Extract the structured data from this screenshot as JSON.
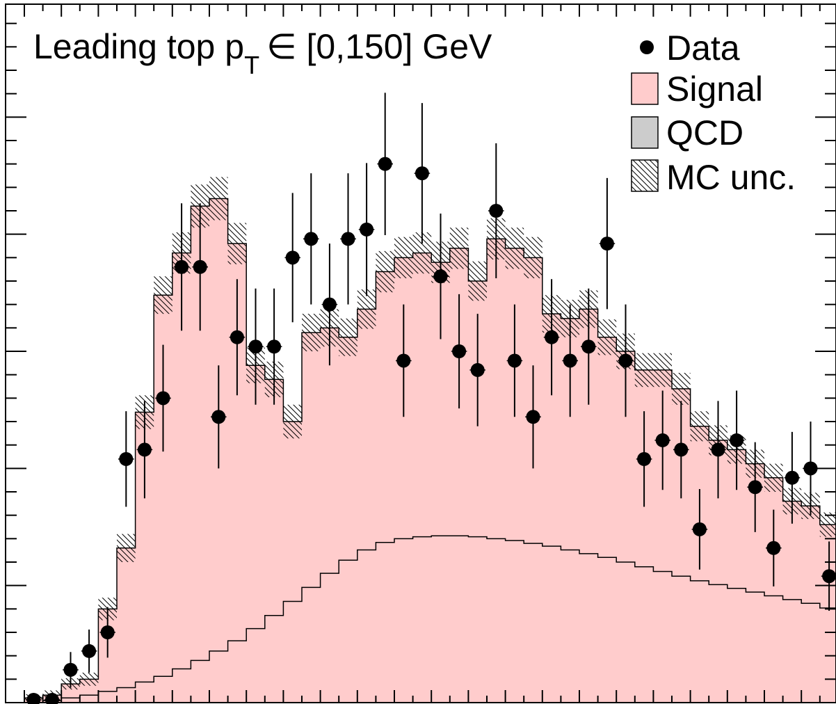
{
  "chart_data": {
    "type": "histogram",
    "title": "Leading top p",
    "title_subscript": "T",
    "title_suffix": "∈ [0,150] GeV",
    "legend": {
      "placement": "top-right",
      "entries": [
        {
          "key": "data",
          "label": "Data",
          "style": "marker"
        },
        {
          "key": "signal",
          "label": "Signal",
          "style": "fill",
          "color": "#ffcccc"
        },
        {
          "key": "qcd",
          "label": "QCD",
          "style": "fill",
          "color": "#cccccc"
        },
        {
          "key": "mc_unc",
          "label": "MC unc.",
          "style": "hatch"
        }
      ]
    },
    "ylim": [
      0,
      75
    ],
    "nbins": 44,
    "qcd": [
      0.0,
      0.2,
      0.5,
      0.8,
      1.2,
      1.6,
      2.2,
      2.8,
      3.6,
      4.5,
      5.5,
      6.6,
      7.9,
      9.3,
      10.8,
      12.3,
      13.8,
      15.2,
      16.3,
      17.1,
      17.5,
      17.7,
      17.8,
      17.8,
      17.7,
      17.5,
      17.3,
      17.0,
      16.7,
      16.3,
      15.9,
      15.5,
      15.0,
      14.5,
      14.0,
      13.5,
      13.0,
      12.6,
      12.2,
      11.8,
      11.4,
      11.0,
      10.6,
      10.1
    ],
    "total": [
      0.5,
      0.8,
      2.0,
      2.5,
      10.0,
      16.5,
      31.0,
      43.5,
      48.0,
      53.0,
      53.8,
      49.0,
      36.0,
      34.5,
      30.0,
      39.5,
      40.0,
      39.0,
      42.0,
      46.0,
      47.5,
      48.0,
      47.0,
      48.5,
      45.0,
      49.5,
      48.5,
      47.5,
      41.5,
      41.0,
      42.0,
      39.0,
      37.5,
      35.5,
      35.5,
      33.5,
      29.5,
      28.0,
      27.0,
      25.5,
      24.0,
      21.5,
      21.0,
      19.0
    ],
    "mc_unc": [
      0.4,
      0.5,
      0.6,
      0.7,
      1.2,
      1.5,
      1.8,
      2.0,
      2.2,
      2.3,
      2.3,
      2.2,
      1.9,
      1.9,
      1.8,
      2.0,
      2.0,
      2.0,
      2.1,
      2.2,
      2.2,
      2.2,
      2.2,
      2.2,
      2.1,
      2.2,
      2.2,
      2.2,
      2.0,
      2.0,
      2.0,
      1.9,
      1.9,
      1.8,
      1.8,
      1.7,
      1.6,
      1.6,
      1.5,
      1.5,
      1.5,
      1.4,
      1.4,
      1.3
    ],
    "data": [
      0.3,
      0.3,
      3.5,
      5.5,
      7.5,
      26.0,
      27.0,
      32.5,
      46.5,
      46.5,
      30.5,
      39.0,
      38.0,
      38.0,
      47.5,
      49.5,
      42.5,
      49.5,
      50.5,
      57.5,
      36.5,
      56.5,
      45.5,
      37.5,
      35.5,
      52.5,
      36.5,
      30.5,
      39.0,
      36.5,
      38.0,
      49.0,
      36.5,
      26.0,
      28.0,
      27.0,
      18.5,
      27.0,
      28.0,
      23.0,
      16.5,
      24.0,
      25.0,
      13.5
    ],
    "data_err": [
      0.6,
      0.6,
      1.9,
      2.3,
      2.7,
      5.1,
      5.2,
      5.7,
      6.8,
      6.8,
      5.5,
      6.2,
      6.2,
      6.2,
      6.9,
      7.0,
      6.5,
      7.0,
      7.1,
      7.6,
      6.0,
      7.5,
      6.7,
      6.1,
      6.0,
      7.2,
      6.0,
      5.5,
      6.2,
      6.0,
      6.2,
      7.0,
      6.0,
      5.1,
      5.3,
      5.2,
      4.3,
      5.2,
      5.3,
      4.8,
      4.1,
      4.9,
      5.0,
      3.7
    ]
  }
}
